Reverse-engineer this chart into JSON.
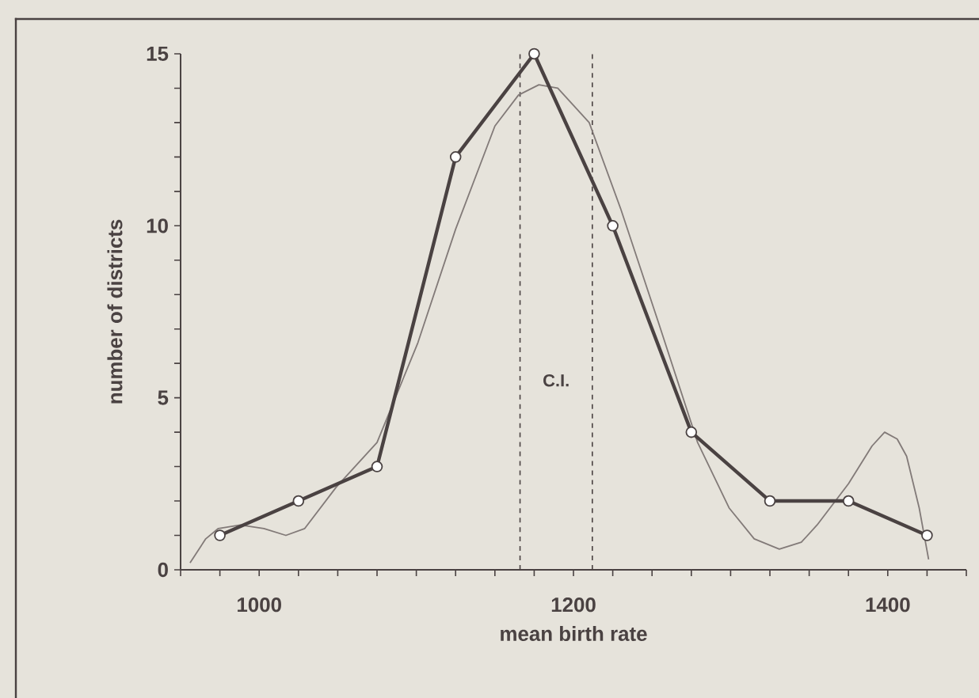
{
  "chart_data": {
    "type": "line",
    "xlabel": "mean birth rate",
    "ylabel": "number of districts",
    "xlim": [
      950,
      1450
    ],
    "ylim": [
      0,
      15
    ],
    "xticks": [
      {
        "value": 950,
        "label": null
      },
      {
        "value": 975,
        "label": null
      },
      1000,
      {
        "value": 1025,
        "label": null
      },
      {
        "value": 1050,
        "label": null
      },
      {
        "value": 1075,
        "label": null
      },
      {
        "value": 1100,
        "label": null
      },
      {
        "value": 1125,
        "label": null
      },
      {
        "value": 1150,
        "label": null
      },
      {
        "value": 1175,
        "label": null
      },
      1200,
      {
        "value": 1225,
        "label": null
      },
      {
        "value": 1250,
        "label": null
      },
      {
        "value": 1275,
        "label": null
      },
      {
        "value": 1300,
        "label": null
      },
      {
        "value": 1325,
        "label": null
      },
      {
        "value": 1350,
        "label": null
      },
      {
        "value": 1375,
        "label": null
      },
      1400,
      {
        "value": 1425,
        "label": null
      },
      {
        "value": 1450,
        "label": null
      }
    ],
    "yticks": [
      0,
      {
        "value": 1,
        "label": null
      },
      {
        "value": 2,
        "label": null
      },
      {
        "value": 3,
        "label": null
      },
      {
        "value": 4,
        "label": null
      },
      5,
      {
        "value": 6,
        "label": null
      },
      {
        "value": 7,
        "label": null
      },
      {
        "value": 8,
        "label": null
      },
      {
        "value": 9,
        "label": null
      },
      10,
      {
        "value": 11,
        "label": null
      },
      {
        "value": 12,
        "label": null
      },
      {
        "value": 13,
        "label": null
      },
      {
        "value": 14,
        "label": null
      },
      15
    ],
    "series": [
      {
        "color": "#4a4242",
        "marker": "circle",
        "line_style": "solid",
        "x": [
          975,
          1025,
          1075,
          1125,
          1175,
          1225,
          1275,
          1325,
          1375,
          1425
        ],
        "values": [
          1,
          2,
          3,
          12,
          15,
          10,
          4,
          2,
          2,
          1
        ]
      },
      {
        "color": "#827a78",
        "marker": "none",
        "line_style": "solid",
        "x": [
          956,
          966,
          974,
          988,
          1003,
          1017,
          1029,
          1049,
          1075,
          1101,
          1125,
          1150,
          1165,
          1178,
          1190,
          1210,
          1230,
          1254,
          1279,
          1299,
          1315,
          1331,
          1345,
          1355,
          1375,
          1390,
          1398,
          1406,
          1412,
          1420,
          1426
        ],
        "values": [
          0.2,
          0.9,
          1.2,
          1.3,
          1.2,
          1.0,
          1.2,
          2.4,
          3.7,
          6.6,
          9.9,
          12.9,
          13.8,
          14.1,
          14.0,
          13.0,
          10.5,
          7.2,
          3.7,
          1.8,
          0.9,
          0.6,
          0.8,
          1.3,
          2.5,
          3.6,
          4.0,
          3.8,
          3.3,
          1.8,
          0.3
        ]
      }
    ],
    "ref_lines": [
      {
        "axis": "x",
        "value": 1166,
        "color": "#4a4242",
        "line_style": "dashed"
      },
      {
        "axis": "x",
        "value": 1212,
        "color": "#4a4242",
        "line_style": "dashed"
      }
    ],
    "annotations": [
      "C.I."
    ]
  }
}
